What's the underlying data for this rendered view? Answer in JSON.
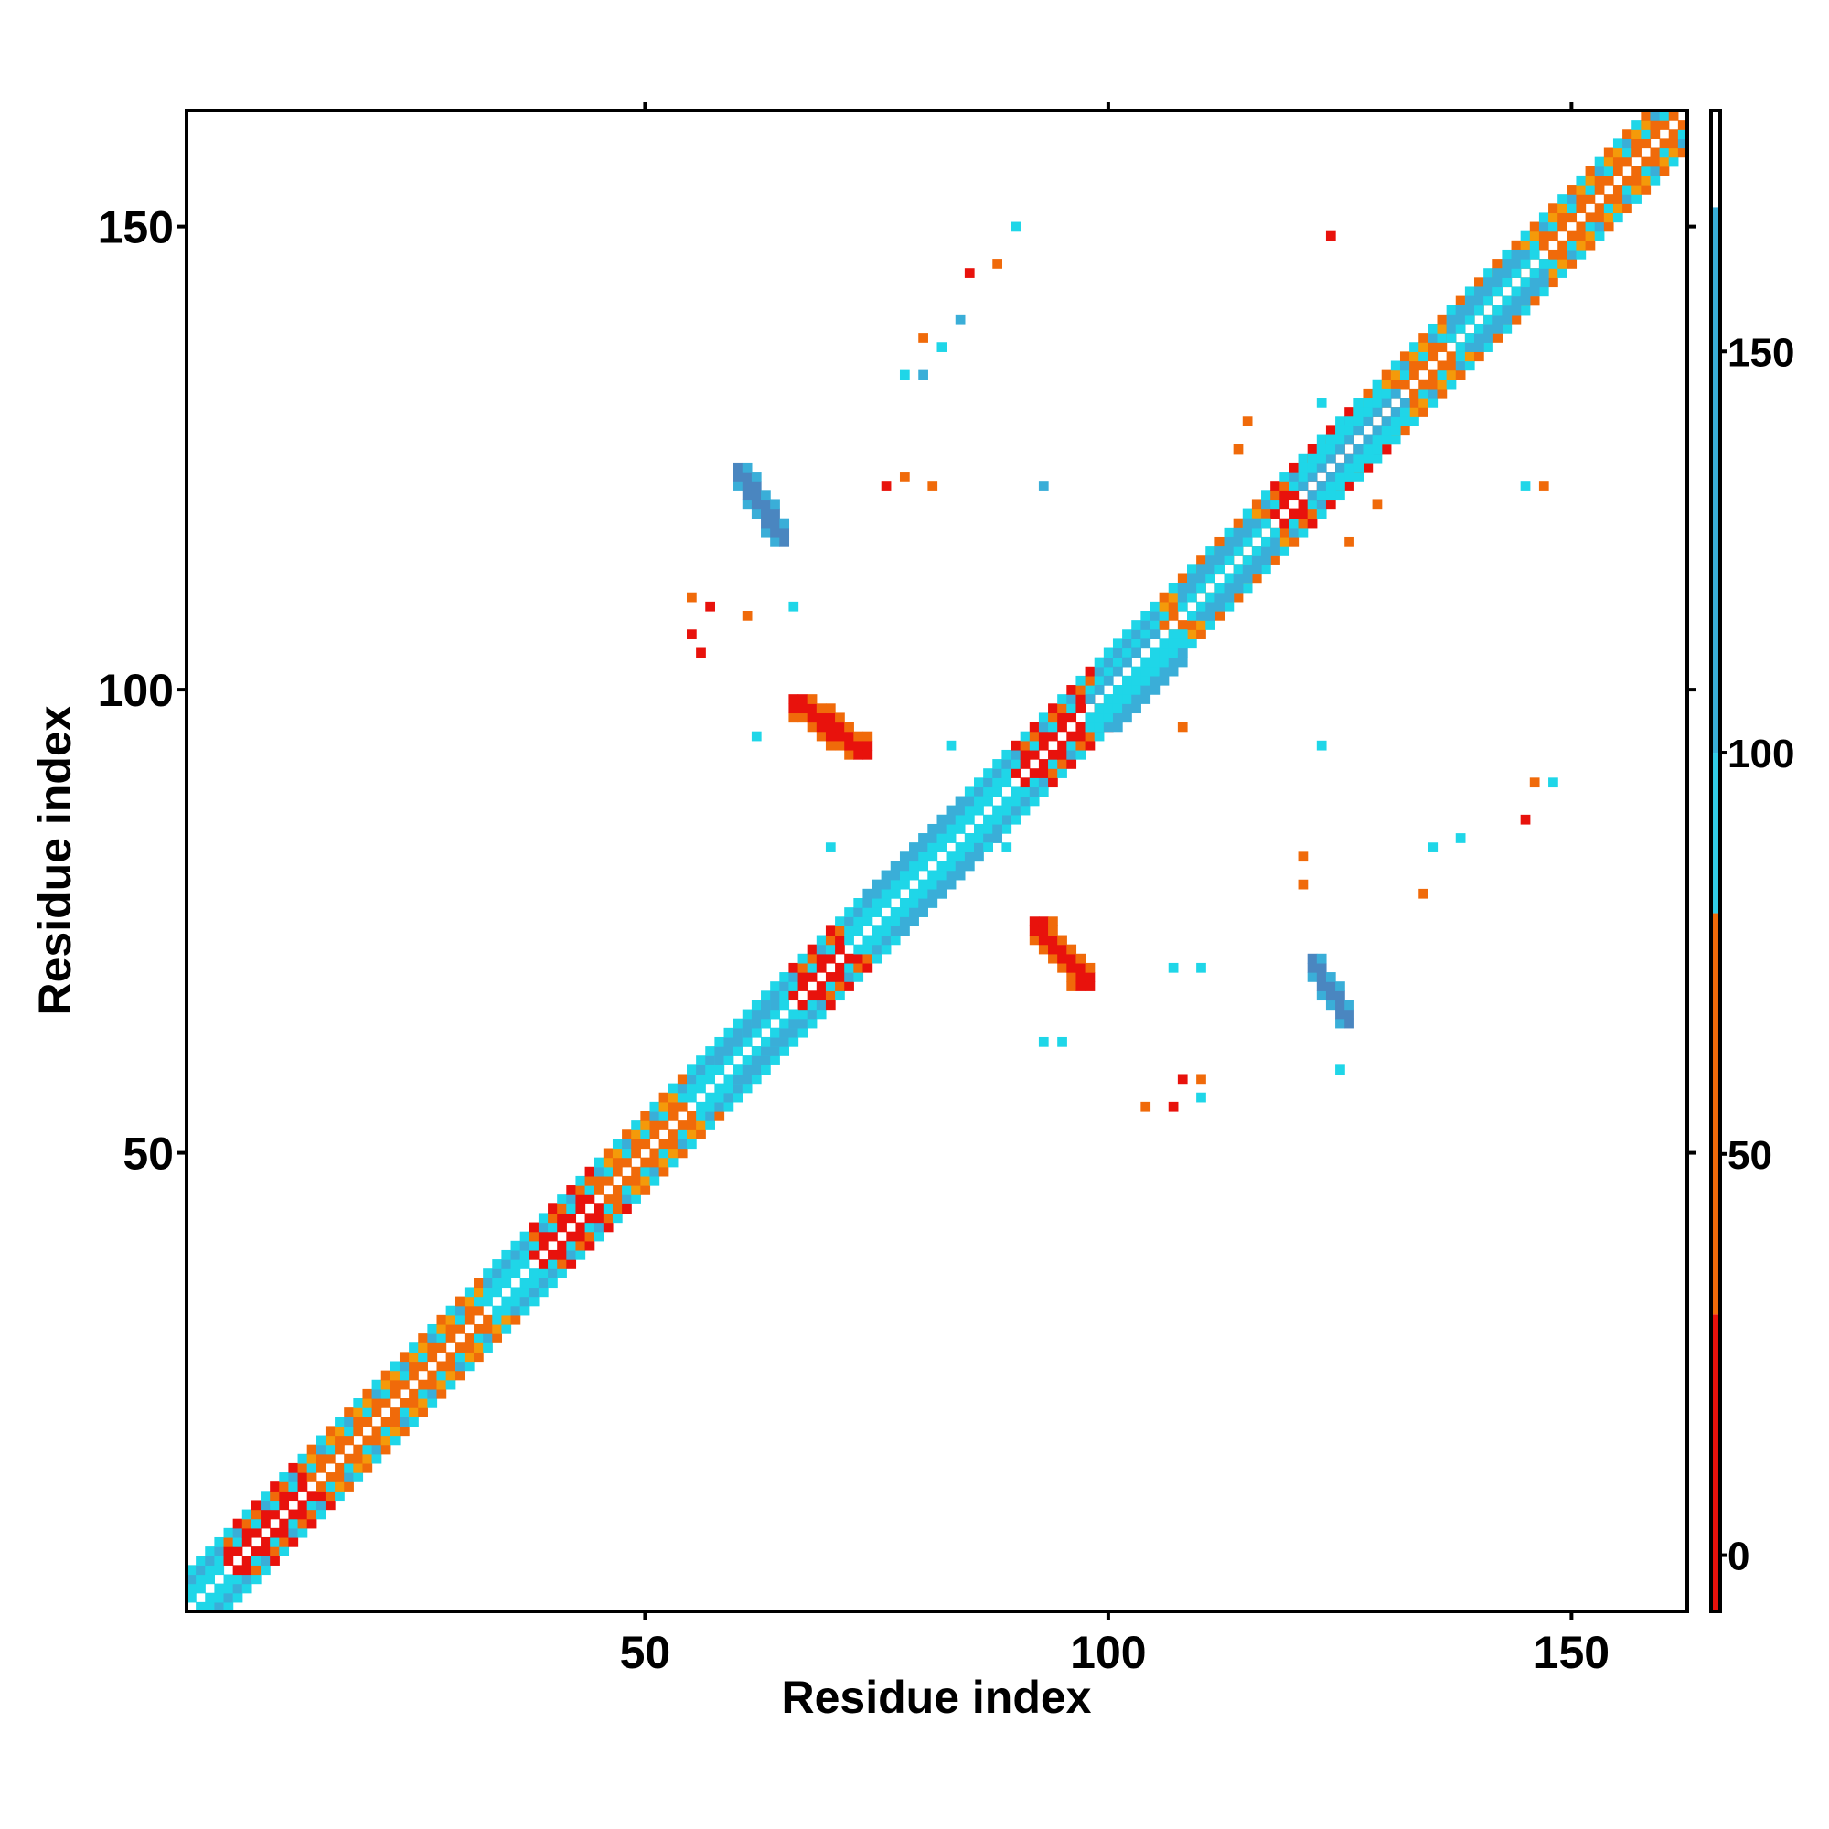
{
  "chart_data": {
    "type": "heatmap",
    "title": "",
    "xlabel": "Residue index",
    "ylabel": "Residue index",
    "xlim": [
      1,
      162
    ],
    "ylim": [
      1,
      162
    ],
    "x_ticks": [
      50,
      100,
      150
    ],
    "y_ticks": [
      50,
      100,
      150
    ],
    "colorbar": {
      "range": [
        -7,
        180
      ],
      "ticks": [
        0,
        50,
        100,
        150
      ],
      "bands": [
        {
          "from": -7,
          "to": 30,
          "color": "#e8120c"
        },
        {
          "from": 30,
          "to": 80,
          "color": "#f06a0a"
        },
        {
          "from": 80,
          "to": 100,
          "color": "#33cde8"
        },
        {
          "from": 100,
          "to": 168,
          "color": "#3aaed8"
        },
        {
          "from": 168,
          "to": 180,
          "color": "#ffffff"
        }
      ]
    },
    "colors": {
      "red": "#e8120c",
      "orange": "#f06a0a",
      "light_orange": "#f49a0a",
      "cyan": "#1fd6e8",
      "light_blue": "#3aaed8",
      "steel_blue": "#4a86c0"
    },
    "diagonal": {
      "range": [
        1,
        162
      ],
      "segments": [
        {
          "from": 1,
          "to": 5,
          "color": "cyan"
        },
        {
          "from": 5,
          "to": 14,
          "color": "red"
        },
        {
          "from": 14,
          "to": 33,
          "color": "orange"
        },
        {
          "from": 33,
          "to": 38,
          "color": "cyan"
        },
        {
          "from": 38,
          "to": 45,
          "color": "red"
        },
        {
          "from": 45,
          "to": 55,
          "color": "orange"
        },
        {
          "from": 55,
          "to": 66,
          "color": "cyan"
        },
        {
          "from": 66,
          "to": 72,
          "color": "red"
        },
        {
          "from": 72,
          "to": 90,
          "color": "cyan"
        },
        {
          "from": 90,
          "to": 99,
          "color": "red"
        },
        {
          "from": 99,
          "to": 106,
          "color": "cyan"
        },
        {
          "from": 106,
          "to": 118,
          "color": "orange"
        },
        {
          "from": 118,
          "to": 127,
          "color": "red"
        },
        {
          "from": 127,
          "to": 162,
          "color": "orange"
        }
      ]
    },
    "clusters": [
      {
        "x": [
          60,
          65
        ],
        "y": [
          116,
          124
        ],
        "color": "steel_blue"
      },
      {
        "x": [
          122,
          126
        ],
        "y": [
          64,
          71
        ],
        "color": "steel_blue"
      },
      {
        "x": [
          66,
          74
        ],
        "y": [
          93,
          99
        ],
        "color": "red"
      },
      {
        "x": [
          92,
          98
        ],
        "y": [
          68,
          75
        ],
        "color": "red"
      },
      {
        "x": [
          121,
          132
        ],
        "y": [
          121,
          132
        ],
        "color": "light_blue"
      },
      {
        "x": [
          98,
          108
        ],
        "y": [
          96,
          106
        ],
        "color": "cyan"
      },
      {
        "x": [
          74,
          88
        ],
        "y": [
          74,
          88
        ],
        "color": "cyan"
      },
      {
        "x": [
          108,
          118
        ],
        "y": [
          108,
          118
        ],
        "color": "cyan"
      },
      {
        "x": [
          137,
          147
        ],
        "y": [
          137,
          147
        ],
        "color": "cyan"
      },
      {
        "x": [
          58,
          66
        ],
        "y": [
          58,
          66
        ],
        "color": "cyan"
      }
    ],
    "scatter_points": [
      {
        "x": 90,
        "y": 150,
        "color": "cyan"
      },
      {
        "x": 88,
        "y": 146,
        "color": "orange"
      },
      {
        "x": 85,
        "y": 145,
        "color": "red"
      },
      {
        "x": 84,
        "y": 140,
        "color": "light_blue"
      },
      {
        "x": 80,
        "y": 138,
        "color": "orange"
      },
      {
        "x": 82,
        "y": 137,
        "color": "cyan"
      },
      {
        "x": 78,
        "y": 134,
        "color": "cyan"
      },
      {
        "x": 80,
        "y": 134,
        "color": "light_blue"
      },
      {
        "x": 76,
        "y": 122,
        "color": "red"
      },
      {
        "x": 78,
        "y": 123,
        "color": "orange"
      },
      {
        "x": 81,
        "y": 122,
        "color": "orange"
      },
      {
        "x": 93,
        "y": 122,
        "color": "light_blue"
      },
      {
        "x": 55,
        "y": 110,
        "color": "orange"
      },
      {
        "x": 57,
        "y": 109,
        "color": "red"
      },
      {
        "x": 55,
        "y": 106,
        "color": "red"
      },
      {
        "x": 61,
        "y": 108,
        "color": "orange"
      },
      {
        "x": 66,
        "y": 109,
        "color": "cyan"
      },
      {
        "x": 56,
        "y": 104,
        "color": "red"
      },
      {
        "x": 62,
        "y": 95,
        "color": "cyan"
      },
      {
        "x": 83,
        "y": 94,
        "color": "cyan"
      },
      {
        "x": 70,
        "y": 83,
        "color": "cyan"
      },
      {
        "x": 87,
        "y": 83,
        "color": "cyan"
      },
      {
        "x": 89,
        "y": 83,
        "color": "cyan"
      },
      {
        "x": 93,
        "y": 62,
        "color": "cyan"
      },
      {
        "x": 95,
        "y": 62,
        "color": "cyan"
      },
      {
        "x": 108,
        "y": 96,
        "color": "orange"
      },
      {
        "x": 107,
        "y": 70,
        "color": "cyan"
      },
      {
        "x": 110,
        "y": 70,
        "color": "cyan"
      },
      {
        "x": 108,
        "y": 58,
        "color": "red"
      },
      {
        "x": 110,
        "y": 58,
        "color": "orange"
      },
      {
        "x": 104,
        "y": 55,
        "color": "orange"
      },
      {
        "x": 107,
        "y": 55,
        "color": "red"
      },
      {
        "x": 110,
        "y": 56,
        "color": "cyan"
      },
      {
        "x": 121,
        "y": 82,
        "color": "orange"
      },
      {
        "x": 121,
        "y": 79,
        "color": "orange"
      },
      {
        "x": 125,
        "y": 59,
        "color": "cyan"
      },
      {
        "x": 124,
        "y": 149,
        "color": "red"
      },
      {
        "x": 123,
        "y": 131,
        "color": "cyan"
      },
      {
        "x": 115,
        "y": 129,
        "color": "orange"
      },
      {
        "x": 114,
        "y": 126,
        "color": "orange"
      },
      {
        "x": 129,
        "y": 120,
        "color": "orange"
      },
      {
        "x": 126,
        "y": 116,
        "color": "orange"
      },
      {
        "x": 123,
        "y": 94,
        "color": "cyan"
      },
      {
        "x": 135,
        "y": 83,
        "color": "cyan"
      },
      {
        "x": 138,
        "y": 84,
        "color": "cyan"
      },
      {
        "x": 134,
        "y": 78,
        "color": "orange"
      },
      {
        "x": 146,
        "y": 90,
        "color": "orange"
      },
      {
        "x": 148,
        "y": 90,
        "color": "cyan"
      },
      {
        "x": 145,
        "y": 86,
        "color": "red"
      },
      {
        "x": 147,
        "y": 122,
        "color": "orange"
      },
      {
        "x": 145,
        "y": 122,
        "color": "cyan"
      }
    ]
  }
}
